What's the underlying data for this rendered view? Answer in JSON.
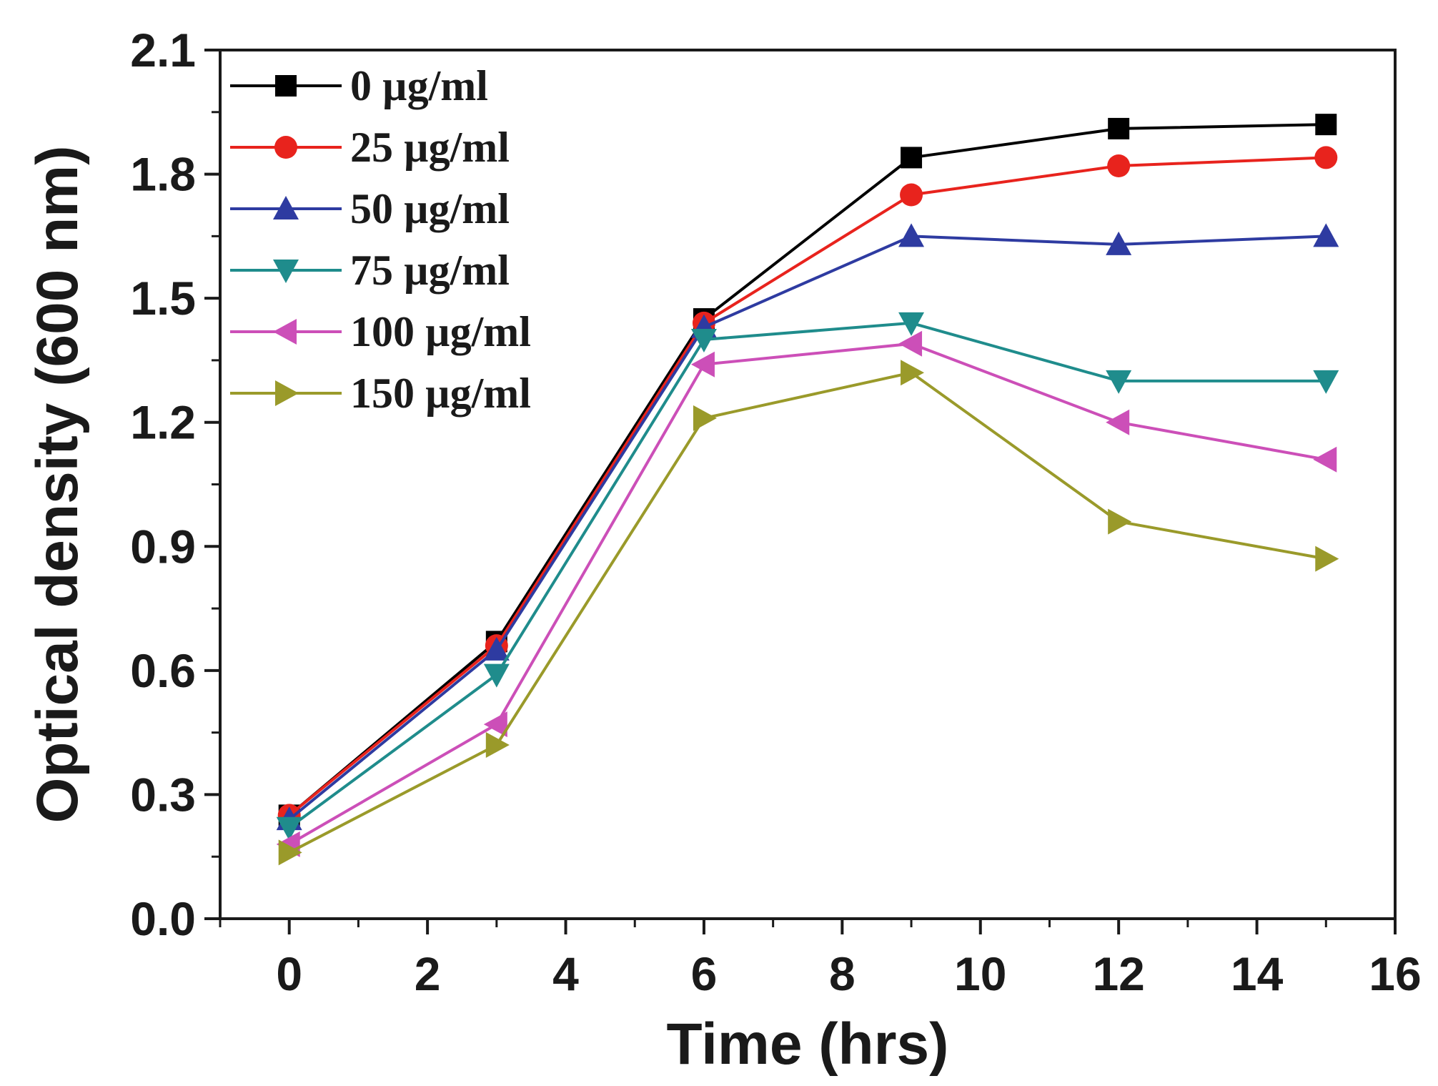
{
  "chart_data": {
    "type": "line",
    "title": "",
    "xlabel": "Time (hrs)",
    "ylabel": "Optical density (600 nm)",
    "xlim": [
      -1,
      16
    ],
    "ylim": [
      0.0,
      2.1
    ],
    "xticks": [
      0,
      2,
      4,
      6,
      8,
      10,
      12,
      14,
      16
    ],
    "xtick_labels": [
      "0",
      "2",
      "4",
      "6",
      "8",
      "10",
      "12",
      "14",
      "16"
    ],
    "yticks": [
      0.0,
      0.3,
      0.6,
      0.9,
      1.2,
      1.5,
      1.8,
      2.1
    ],
    "ytick_labels": [
      "0.0",
      "0.3",
      "0.6",
      "0.9",
      "1.2",
      "1.5",
      "1.8",
      "2.1"
    ],
    "grid": false,
    "legend_position": "top-left",
    "x": [
      0,
      3,
      6,
      9,
      12,
      15
    ],
    "series": [
      {
        "name": "0 µg/ml",
        "color": "#000000",
        "marker": "square",
        "values": [
          0.25,
          0.67,
          1.45,
          1.84,
          1.91,
          1.92
        ]
      },
      {
        "name": "25 µg/ml",
        "color": "#e8231d",
        "marker": "circle",
        "values": [
          0.25,
          0.66,
          1.44,
          1.75,
          1.82,
          1.84
        ]
      },
      {
        "name": "50 µg/ml",
        "color": "#2e3ba1",
        "marker": "triangle-up",
        "values": [
          0.24,
          0.65,
          1.43,
          1.65,
          1.63,
          1.65
        ]
      },
      {
        "name": "75 µg/ml",
        "color": "#1f8c8c",
        "marker": "triangle-down",
        "values": [
          0.22,
          0.59,
          1.4,
          1.44,
          1.3,
          1.3
        ]
      },
      {
        "name": "100 µg/ml",
        "color": "#cc4fb8",
        "marker": "triangle-left",
        "values": [
          0.18,
          0.47,
          1.34,
          1.39,
          1.2,
          1.11
        ]
      },
      {
        "name": "150 µg/ml",
        "color": "#9a9a2a",
        "marker": "triangle-right",
        "values": [
          0.16,
          0.42,
          1.21,
          1.32,
          0.96,
          0.87
        ]
      }
    ]
  }
}
